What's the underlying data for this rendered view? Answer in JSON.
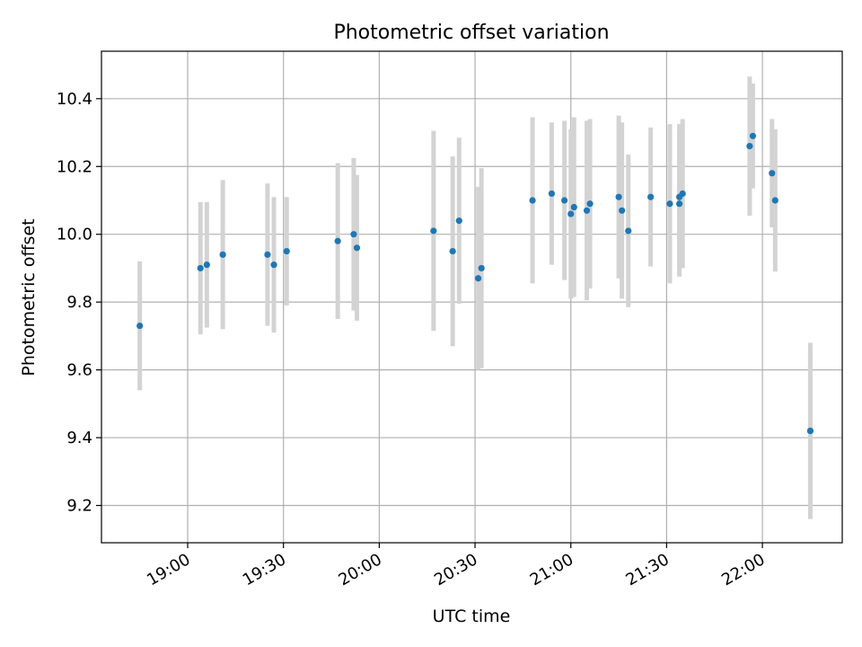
{
  "chart_data": {
    "type": "scatter",
    "title": "Photometric offset variation",
    "xlabel": "UTC time",
    "ylabel": "Photometric offset",
    "x_ticks": [
      "19:00",
      "19:30",
      "20:00",
      "20:30",
      "21:00",
      "21:30",
      "22:00"
    ],
    "y_ticks": [
      "9.2",
      "9.4",
      "9.6",
      "9.8",
      "10.0",
      "10.2",
      "10.4"
    ],
    "xlim": [
      "18:33",
      "22:25"
    ],
    "ylim": [
      9.09,
      10.54
    ],
    "grid": true,
    "colors": {
      "points": "#1f77b4",
      "errorbars": "#d3d3d3",
      "grid": "#b0b0b0"
    },
    "points": [
      {
        "x": "18:45",
        "y": 9.73,
        "err": 0.19
      },
      {
        "x": "19:04",
        "y": 9.9,
        "err": 0.195
      },
      {
        "x": "19:06",
        "y": 9.91,
        "err": 0.185
      },
      {
        "x": "19:11",
        "y": 9.94,
        "err": 0.22
      },
      {
        "x": "19:25",
        "y": 9.94,
        "err": 0.21
      },
      {
        "x": "19:27",
        "y": 9.91,
        "err": 0.2
      },
      {
        "x": "19:31",
        "y": 9.95,
        "err": 0.16
      },
      {
        "x": "19:47",
        "y": 9.98,
        "err": 0.23
      },
      {
        "x": "19:52",
        "y": 10.0,
        "err": 0.225
      },
      {
        "x": "19:53",
        "y": 9.96,
        "err": 0.215
      },
      {
        "x": "20:17",
        "y": 10.01,
        "err": 0.295
      },
      {
        "x": "20:23",
        "y": 9.95,
        "err": 0.28
      },
      {
        "x": "20:25",
        "y": 10.04,
        "err": 0.245
      },
      {
        "x": "20:31",
        "y": 9.87,
        "err": 0.27
      },
      {
        "x": "20:32",
        "y": 9.9,
        "err": 0.295
      },
      {
        "x": "20:48",
        "y": 10.1,
        "err": 0.245
      },
      {
        "x": "20:54",
        "y": 10.12,
        "err": 0.21
      },
      {
        "x": "20:58",
        "y": 10.1,
        "err": 0.235
      },
      {
        "x": "21:00",
        "y": 10.06,
        "err": 0.25
      },
      {
        "x": "21:01",
        "y": 10.08,
        "err": 0.265
      },
      {
        "x": "21:05",
        "y": 10.07,
        "err": 0.265
      },
      {
        "x": "21:06",
        "y": 10.09,
        "err": 0.25
      },
      {
        "x": "21:15",
        "y": 10.11,
        "err": 0.24
      },
      {
        "x": "21:16",
        "y": 10.07,
        "err": 0.26
      },
      {
        "x": "21:18",
        "y": 10.01,
        "err": 0.225
      },
      {
        "x": "21:25",
        "y": 10.11,
        "err": 0.205
      },
      {
        "x": "21:31",
        "y": 10.09,
        "err": 0.235
      },
      {
        "x": "21:34",
        "y": 10.09,
        "err": 0.215
      },
      {
        "x": "21:34",
        "y": 10.11,
        "err": 0.215
      },
      {
        "x": "21:35",
        "y": 10.12,
        "err": 0.22
      },
      {
        "x": "21:56",
        "y": 10.26,
        "err": 0.205
      },
      {
        "x": "21:57",
        "y": 10.29,
        "err": 0.155
      },
      {
        "x": "22:03",
        "y": 10.18,
        "err": 0.16
      },
      {
        "x": "22:04",
        "y": 10.1,
        "err": 0.21
      },
      {
        "x": "22:15",
        "y": 9.42,
        "err": 0.26
      },
      {
        "x": "22:15",
        "y": 9.42,
        "err": 0.24
      }
    ]
  }
}
